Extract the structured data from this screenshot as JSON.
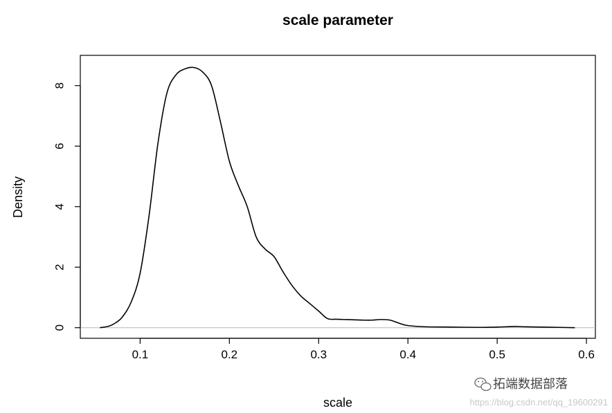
{
  "chart_data": {
    "type": "line",
    "title": "scale parameter",
    "xlabel": "scale",
    "ylabel": "Density",
    "xlim": [
      0.033,
      0.61
    ],
    "ylim": [
      -0.35,
      9.0
    ],
    "x_ticks": [
      0.1,
      0.2,
      0.3,
      0.4,
      0.5,
      0.6
    ],
    "x_tick_labels": [
      "0.1",
      "0.2",
      "0.3",
      "0.4",
      "0.5",
      "0.6"
    ],
    "y_ticks": [
      0,
      2,
      4,
      6,
      8
    ],
    "y_tick_labels": [
      "0",
      "2",
      "4",
      "6",
      "8"
    ],
    "baseline": 0,
    "series": [
      {
        "x": [
          0.055,
          0.065,
          0.072,
          0.08,
          0.09,
          0.1,
          0.11,
          0.12,
          0.13,
          0.14,
          0.15,
          0.16,
          0.17,
          0.18,
          0.19,
          0.2,
          0.21,
          0.22,
          0.23,
          0.24,
          0.25,
          0.26,
          0.27,
          0.28,
          0.29,
          0.3,
          0.31,
          0.32,
          0.33,
          0.34,
          0.35,
          0.36,
          0.37,
          0.38,
          0.39,
          0.4,
          0.42,
          0.45,
          0.48,
          0.5,
          0.52,
          0.53,
          0.55,
          0.57,
          0.587
        ],
        "y": [
          0.0,
          0.05,
          0.15,
          0.35,
          0.85,
          1.8,
          3.7,
          6.1,
          7.75,
          8.35,
          8.55,
          8.6,
          8.45,
          8.0,
          6.8,
          5.5,
          4.7,
          4.0,
          3.0,
          2.6,
          2.35,
          1.85,
          1.4,
          1.05,
          0.8,
          0.55,
          0.3,
          0.28,
          0.27,
          0.26,
          0.25,
          0.25,
          0.27,
          0.25,
          0.15,
          0.07,
          0.03,
          0.02,
          0.01,
          0.02,
          0.04,
          0.03,
          0.02,
          0.01,
          0.0
        ]
      }
    ]
  },
  "watermark": {
    "icon": "wechat-icon",
    "text": "拓端数据部落",
    "url": "https://blog.csdn.net/qq_19600291"
  }
}
